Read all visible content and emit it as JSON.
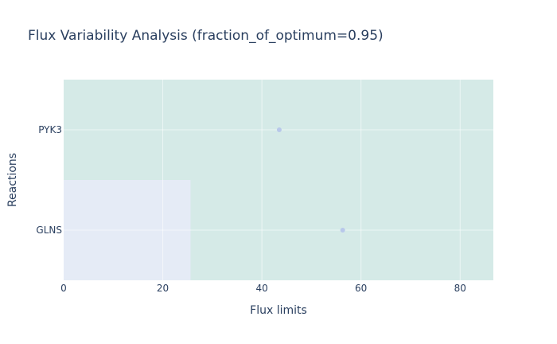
{
  "chart_data": {
    "type": "bar",
    "orientation": "horizontal-range",
    "title": "Flux Variability Analysis (fraction_of_optimum=0.95)",
    "xlabel": "Flux limits",
    "ylabel": "Reactions",
    "categories": [
      "PYK3",
      "GLNS"
    ],
    "xlim": [
      0,
      86.7
    ],
    "xticks": [
      0,
      20,
      40,
      60,
      80
    ],
    "grid": true,
    "series": [
      {
        "values": [
          {
            "min": 0,
            "max": 86.7
          },
          {
            "min": 25.6,
            "max": 86.7
          }
        ],
        "color": "#d5eae7"
      },
      {
        "values": [
          {
            "min": 0,
            "max": 0
          },
          {
            "min": 0,
            "max": 25.6
          }
        ],
        "color": "#e5ebf6"
      }
    ],
    "points": [
      {
        "category": "PYK3",
        "x": 43.5
      },
      {
        "category": "GLNS",
        "x": 56.3
      }
    ],
    "colors": {
      "background": "#e5ecf6",
      "text": "#2a3f5f",
      "marker": "#b8c8ea",
      "grid": "#ffffff"
    }
  }
}
